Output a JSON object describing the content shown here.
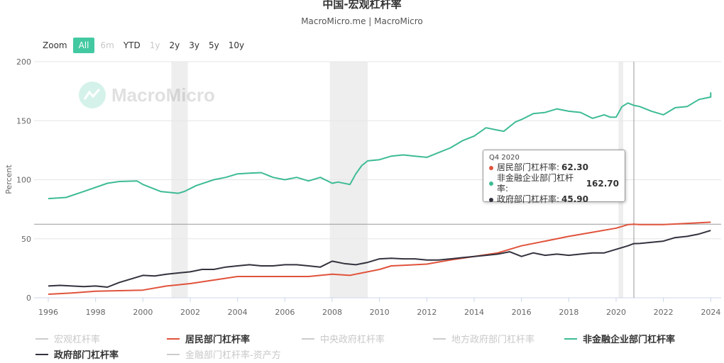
{
  "header": {
    "title": "中国-宏观杠杆率",
    "subtitle": "MacroMicro.me | MacroMicro"
  },
  "zoom": {
    "label": "Zoom",
    "buttons": [
      {
        "label": "All",
        "state": "active"
      },
      {
        "label": "6m",
        "state": "disabled"
      },
      {
        "label": "YTD",
        "state": "normal"
      },
      {
        "label": "1y",
        "state": "disabled"
      },
      {
        "label": "2y",
        "state": "normal"
      },
      {
        "label": "3y",
        "state": "normal"
      },
      {
        "label": "5y",
        "state": "normal"
      },
      {
        "label": "10y",
        "state": "normal"
      }
    ]
  },
  "watermark": "MacroMicro",
  "tooltip": {
    "header": "Q4 2020",
    "rows": [
      {
        "label": "居民部门杠杆率:",
        "value": "62.30",
        "color": "#e0533c"
      },
      {
        "label": "非金融企业部门杠杆率:",
        "value": "162.70",
        "color": "#3dbb95"
      },
      {
        "label": "政府部门杠杆率:",
        "value": "45.90",
        "color": "#33323e"
      }
    ]
  },
  "legend": [
    {
      "label": "宏观杠杆率",
      "color": "#cccccc",
      "active": false
    },
    {
      "label": "居民部门杠杆率",
      "color": "#e0533c",
      "active": true
    },
    {
      "label": "中央政府杠杆率",
      "color": "#cccccc",
      "active": false
    },
    {
      "label": "地方政府部门杠杆率",
      "color": "#cccccc",
      "active": false
    },
    {
      "label": "非金融企业部门杠杆率",
      "color": "#3dbb95",
      "active": true
    },
    {
      "label": "政府部门杠杆率",
      "color": "#33323e",
      "active": true
    },
    {
      "label": "金融部门杠杆率-资产方",
      "color": "#cccccc",
      "active": false
    }
  ],
  "chart_data": {
    "type": "line",
    "title": "中国-宏观杠杆率",
    "ylabel": "Percent",
    "xlabel": "",
    "xlim": [
      1996,
      2024.2
    ],
    "ylim": [
      0,
      200
    ],
    "yticks": [
      0,
      50,
      100,
      150,
      200
    ],
    "xticks": [
      1996,
      1998,
      2000,
      2002,
      2004,
      2006,
      2008,
      2010,
      2012,
      2014,
      2016,
      2018,
      2020,
      2022,
      2024
    ],
    "grid": true,
    "recession_bands": [
      [
        2001.2,
        2001.9
      ],
      [
        2007.9,
        2009.5
      ],
      [
        2020.1,
        2020.3
      ]
    ],
    "crosshair_x": 2020.75,
    "series": [
      {
        "name": "非金融企业部门杠杆率",
        "color": "#3dbb95",
        "x": [
          1996,
          1996.75,
          1997.5,
          1998.5,
          1999,
          1999.75,
          2000,
          2000.75,
          2001.5,
          2001.75,
          2002.25,
          2003,
          2003.5,
          2004,
          2004.5,
          2005,
          2005.5,
          2006,
          2006.5,
          2007,
          2007.5,
          2008,
          2008.25,
          2008.75,
          2009,
          2009.25,
          2009.5,
          2010,
          2010.5,
          2011,
          2011.5,
          2012,
          2012.5,
          2013,
          2013.5,
          2014,
          2014.5,
          2015,
          2015.25,
          2015.75,
          2016,
          2016.5,
          2017,
          2017.5,
          2018,
          2018.5,
          2019,
          2019.5,
          2019.75,
          2020,
          2020.25,
          2020.5,
          2020.75,
          2021,
          2021.5,
          2022,
          2022.5,
          2023,
          2023.5,
          2024,
          2024
        ],
        "values": [
          84,
          85,
          90,
          97,
          98.5,
          99,
          96,
          90,
          88.5,
          90,
          95,
          100,
          102,
          105,
          105.5,
          106,
          102,
          100,
          102,
          99,
          102,
          97,
          98,
          96,
          105,
          112,
          116,
          117,
          120,
          121,
          120,
          119,
          123,
          127,
          133,
          137,
          144,
          142,
          141,
          149,
          151,
          156,
          157,
          160,
          158,
          157,
          152,
          155,
          153,
          153,
          162,
          165,
          163,
          162,
          158,
          155,
          161,
          162,
          168,
          170,
          174
        ]
      },
      {
        "name": "居民部门杠杆率",
        "color": "#e0533c",
        "x": [
          1996,
          1997,
          1998,
          1999,
          2000,
          2001,
          2002,
          2003,
          2004,
          2005,
          2006,
          2007,
          2008,
          2008.75,
          2009,
          2009.5,
          2010,
          2010.5,
          2011,
          2012,
          2013,
          2014,
          2015,
          2016,
          2017,
          2018,
          2019,
          2020,
          2020.5,
          2020.75,
          2021,
          2022,
          2023,
          2024
        ],
        "values": [
          3,
          4,
          5.5,
          6,
          6.5,
          10,
          12,
          15,
          18,
          18,
          18,
          18,
          20,
          19,
          20,
          22,
          24,
          27,
          27.5,
          28.5,
          32,
          35,
          38,
          44,
          48,
          52,
          55.5,
          59,
          62,
          62.3,
          62,
          62,
          63,
          64
        ]
      },
      {
        "name": "政府部门杠杆率",
        "color": "#33323e",
        "x": [
          1996,
          1996.5,
          1997,
          1997.5,
          1998,
          1998.5,
          1999,
          1999.5,
          2000,
          2000.5,
          2001,
          2001.5,
          2002,
          2002.5,
          2003,
          2003.5,
          2004,
          2004.5,
          2005,
          2005.5,
          2006,
          2006.5,
          2007,
          2007.5,
          2008,
          2008.5,
          2009,
          2009.5,
          2010,
          2010.5,
          2011,
          2011.5,
          2012,
          2012.5,
          2013,
          2013.5,
          2014,
          2014.5,
          2015,
          2015.5,
          2016,
          2016.5,
          2017,
          2017.5,
          2018,
          2018.5,
          2019,
          2019.5,
          2020,
          2020.5,
          2020.75,
          2021,
          2021.5,
          2022,
          2022.5,
          2023,
          2023.5,
          2024
        ],
        "values": [
          10,
          10.5,
          10,
          9.5,
          10,
          9,
          13,
          16,
          19,
          18.5,
          20,
          21,
          22,
          24,
          24,
          26,
          27,
          28,
          27,
          27,
          28,
          28,
          27,
          26,
          31,
          29,
          28,
          30,
          33,
          33.5,
          33,
          33,
          32,
          32,
          33,
          34,
          35,
          36,
          37,
          39,
          35,
          38,
          36,
          37,
          36,
          37,
          38,
          38,
          41,
          44,
          45.9,
          46,
          47,
          48,
          51,
          52,
          54,
          57
        ]
      }
    ]
  }
}
